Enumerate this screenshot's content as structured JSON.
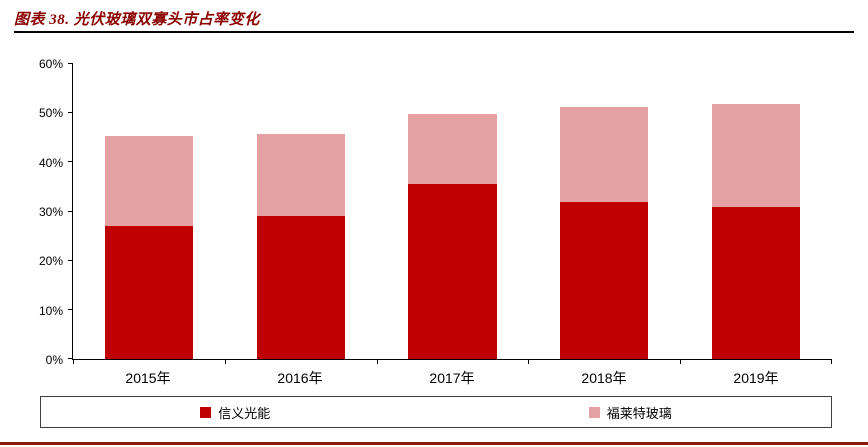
{
  "header": {
    "title": "图表 38. 光伏玻璃双寡头市占率变化"
  },
  "colors": {
    "title": "#8B0000",
    "header_rule": "#000000",
    "bottom_rule": "#8B1A0A",
    "axis": "#000000",
    "series1": "#C00000",
    "series2": "#E5A0A4"
  },
  "chart_data": {
    "type": "bar",
    "stacked": true,
    "title": "图表 38. 光伏玻璃双寡头市占率变化",
    "categories": [
      "2015年",
      "2016年",
      "2017年",
      "2018年",
      "2019年"
    ],
    "series": [
      {
        "name": "信义光能",
        "color": "#C00000",
        "values": [
          27.0,
          29.0,
          35.5,
          32.0,
          31.0
        ]
      },
      {
        "name": "福莱特玻璃",
        "color": "#E5A0A4",
        "values": [
          18.4,
          16.8,
          14.3,
          19.3,
          20.9
        ]
      }
    ],
    "xlabel": "",
    "ylabel": "",
    "ylim": [
      0,
      60
    ],
    "ytick_step": 10,
    "ytick_labels": [
      "0%",
      "10%",
      "20%",
      "30%",
      "40%",
      "50%",
      "60%"
    ],
    "grid": false,
    "legend_position": "bottom-box"
  }
}
